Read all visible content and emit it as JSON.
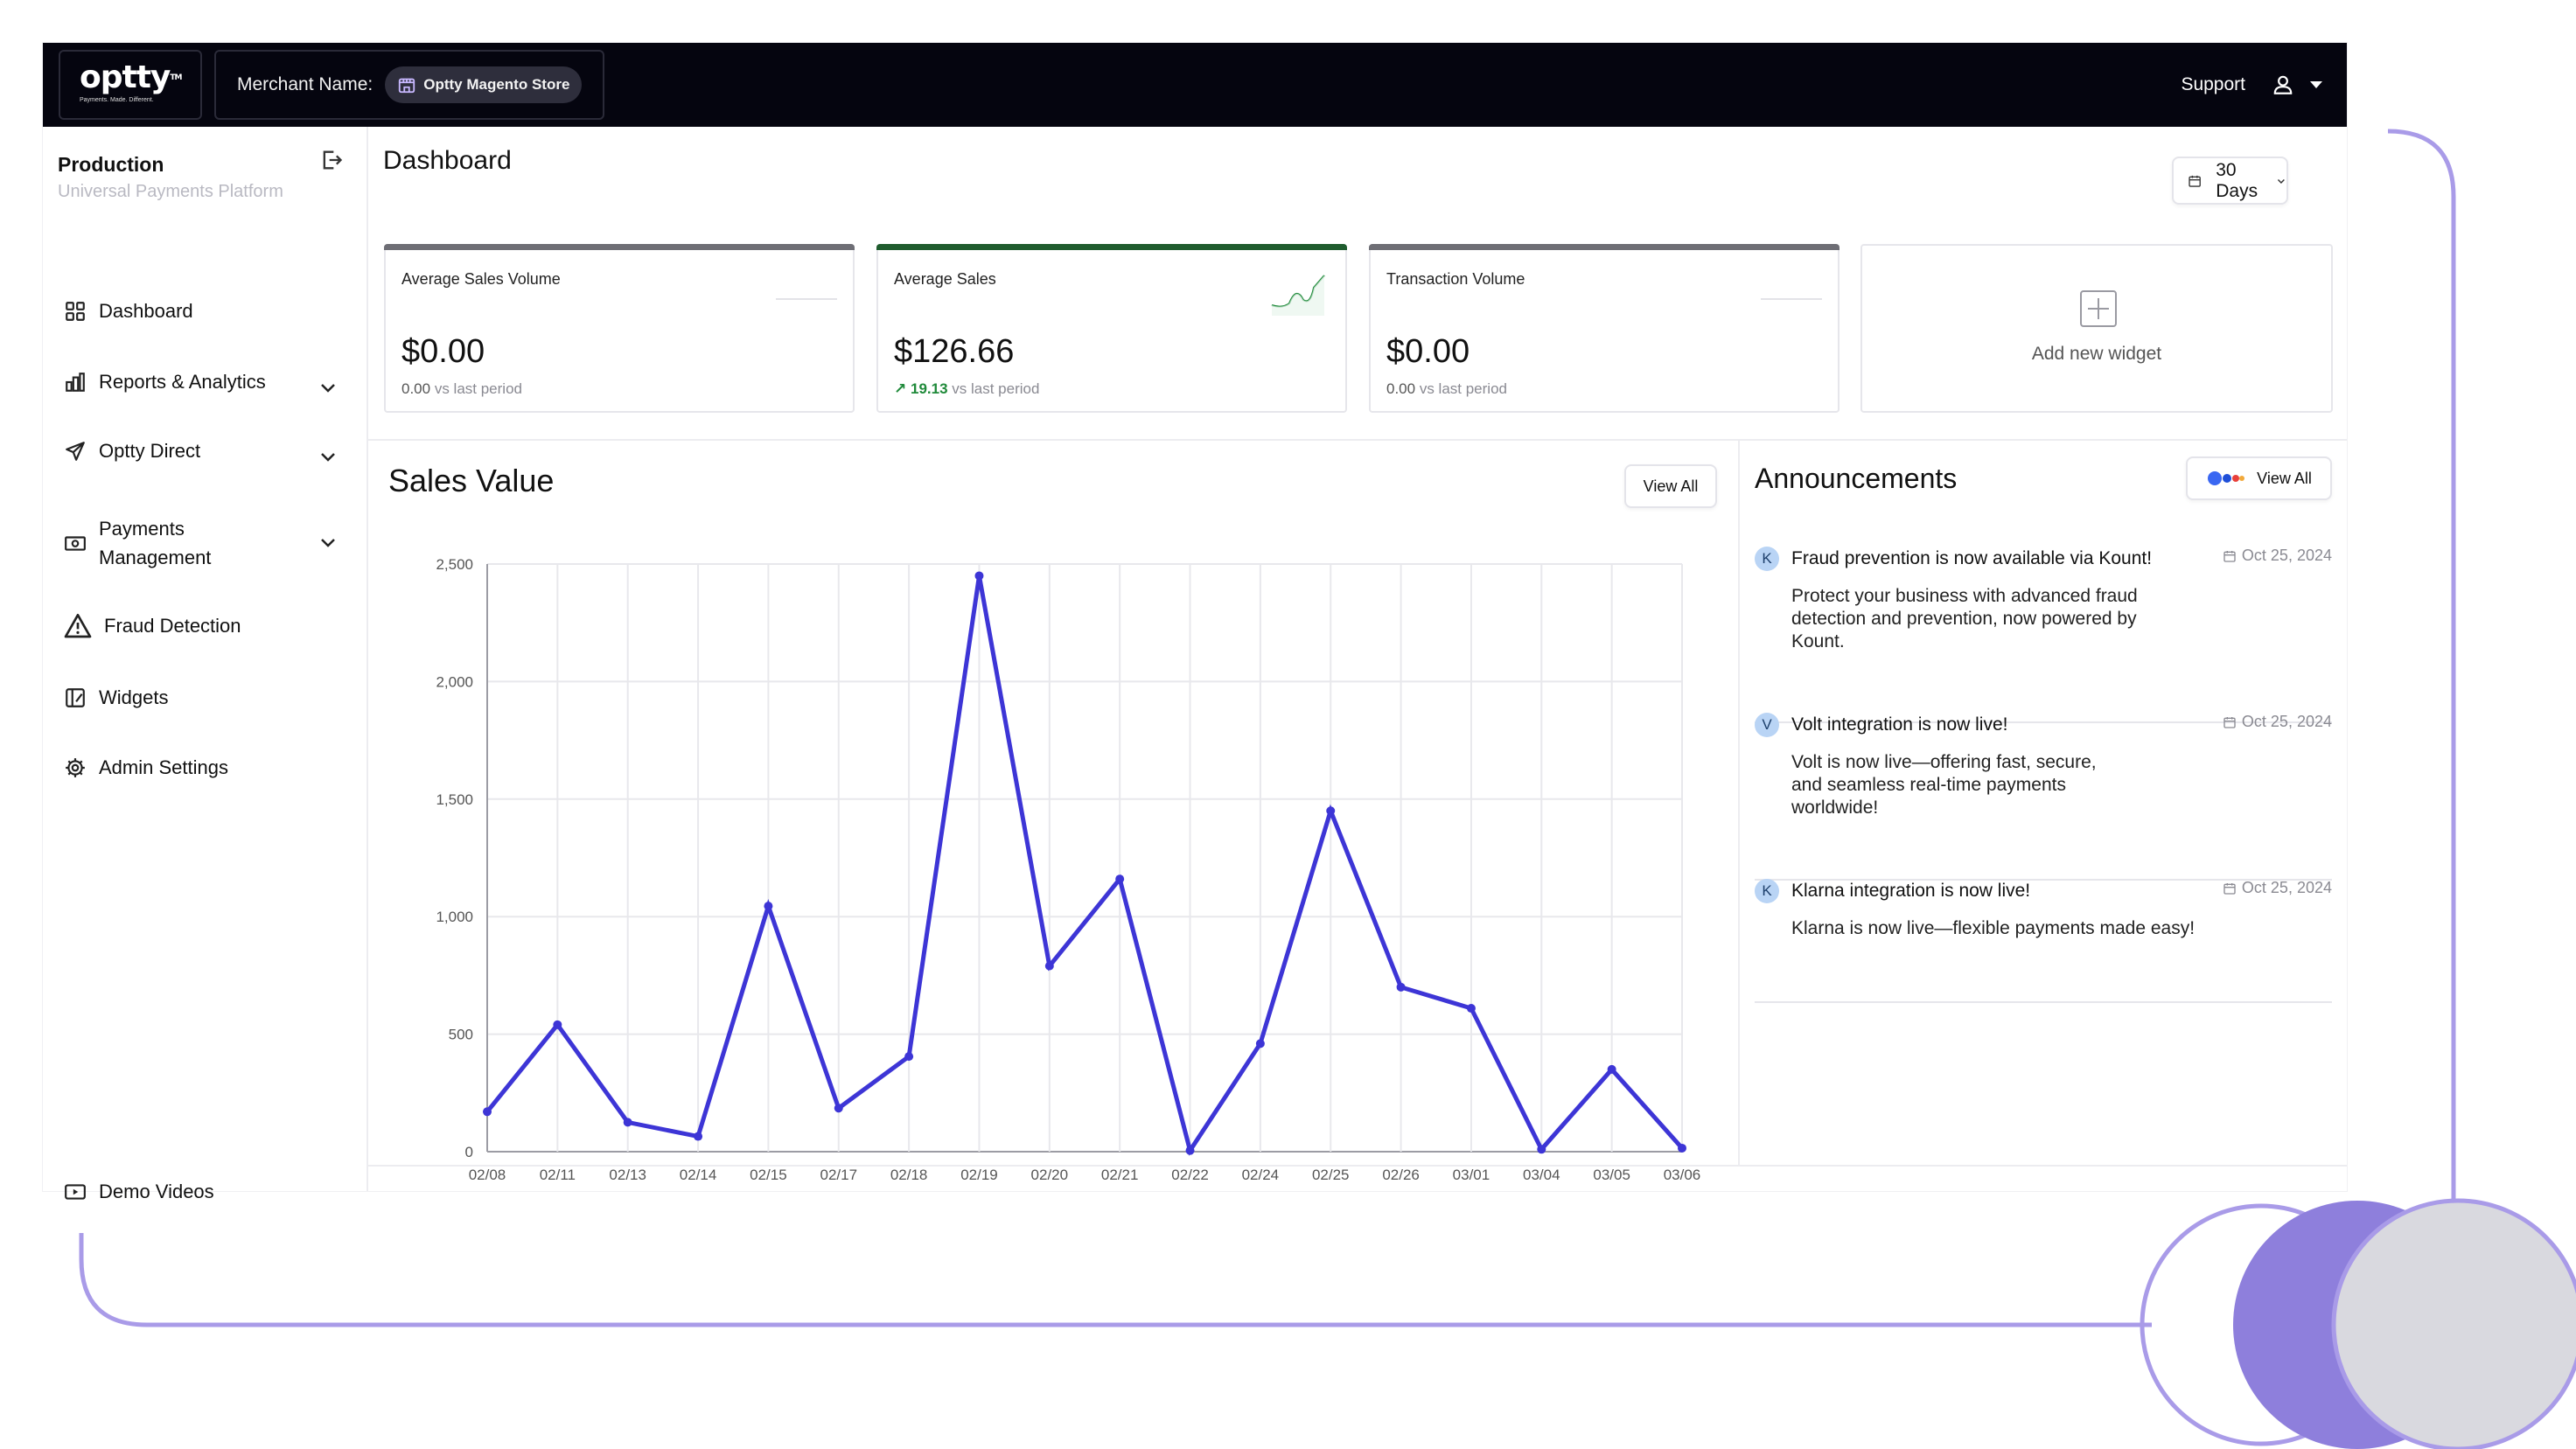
{
  "header": {
    "logo_text": "optty",
    "logo_tm": "TM",
    "logo_tagline": "Payments. Made. Different.",
    "merchant_label": "Merchant Name:",
    "merchant_name": "Optty Magento Store",
    "support_label": "Support"
  },
  "sidebar": {
    "env_title": "Production",
    "env_subtitle": "Universal Payments Platform",
    "items": [
      {
        "label": "Dashboard",
        "icon": "grid-icon"
      },
      {
        "label": "Reports & Analytics",
        "icon": "bar-chart-icon",
        "expandable": true
      },
      {
        "label": "Optty Direct",
        "icon": "send-icon",
        "expandable": true
      },
      {
        "label": "Payments\nManagement",
        "line1": "Payments",
        "line2": "Management",
        "icon": "payments-icon",
        "expandable": true
      },
      {
        "label": "Fraud Detection",
        "icon": "warning-icon"
      },
      {
        "label": "Widgets",
        "icon": "widget-icon"
      },
      {
        "label": "Admin Settings",
        "icon": "gear-icon"
      }
    ],
    "footer_item": {
      "label": "Demo Videos",
      "icon": "video-icon"
    }
  },
  "main": {
    "title": "Dashboard",
    "range_selector": "30 Days",
    "cards": [
      {
        "label": "Average Sales Volume",
        "value": "$0.00",
        "change": "0.00",
        "change_suffix": "vs last period"
      },
      {
        "label": "Average Sales",
        "value": "$126.66",
        "change_arrow": "↗",
        "change": "19.13",
        "change_suffix": "vs last period"
      },
      {
        "label": "Transaction Volume",
        "value": "$0.00",
        "change": "0.00",
        "change_suffix": "vs last period"
      }
    ],
    "add_widget_label": "Add new widget",
    "sales": {
      "title": "Sales Value",
      "view_all": "View All"
    },
    "announcements": {
      "title": "Announcements",
      "view_all": "View All",
      "items": [
        {
          "avatar": "K",
          "title": "Fraud prevention is now available via Kount!",
          "date": "Oct 25, 2024",
          "body_lines": [
            "Protect your business with advanced fraud",
            "detection and prevention, now powered by",
            "Kount."
          ]
        },
        {
          "avatar": "V",
          "title": "Volt integration is now live!",
          "date": "Oct 25, 2024",
          "body_lines": [
            "Volt is now live—offering fast, secure,",
            "and seamless real-time payments",
            "worldwide!"
          ]
        },
        {
          "avatar": "K",
          "title": "Klarna integration is now live!",
          "date": "Oct 25, 2024",
          "body_lines": [
            "Klarna is now live—flexible payments made easy!"
          ]
        }
      ]
    }
  },
  "colors": {
    "topbar": "#05050f",
    "line": "#3d35d6",
    "accent_purple": "#a99be8",
    "positive": "#1f8a3a",
    "card_accent_green": "#1f5c2e"
  },
  "chart_data": {
    "type": "line",
    "title": "Sales Value",
    "x": [
      "02/08",
      "02/11",
      "02/13",
      "02/14",
      "02/15",
      "02/17",
      "02/18",
      "02/19",
      "02/20",
      "02/21",
      "02/22",
      "02/24",
      "02/25",
      "02/26",
      "03/01",
      "03/04",
      "03/05",
      "03/06"
    ],
    "series": [
      {
        "values": [
          170,
          540,
          125,
          65,
          1045,
          185,
          405,
          2450,
          790,
          1160,
          5,
          460,
          1450,
          700,
          610,
          10,
          350,
          15
        ]
      }
    ],
    "y_ticks": [
      "0",
      "500",
      "1,000",
      "1,500",
      "2,000",
      "2,500"
    ],
    "ylim": [
      0,
      2500
    ],
    "grid": true,
    "legend": "none"
  }
}
